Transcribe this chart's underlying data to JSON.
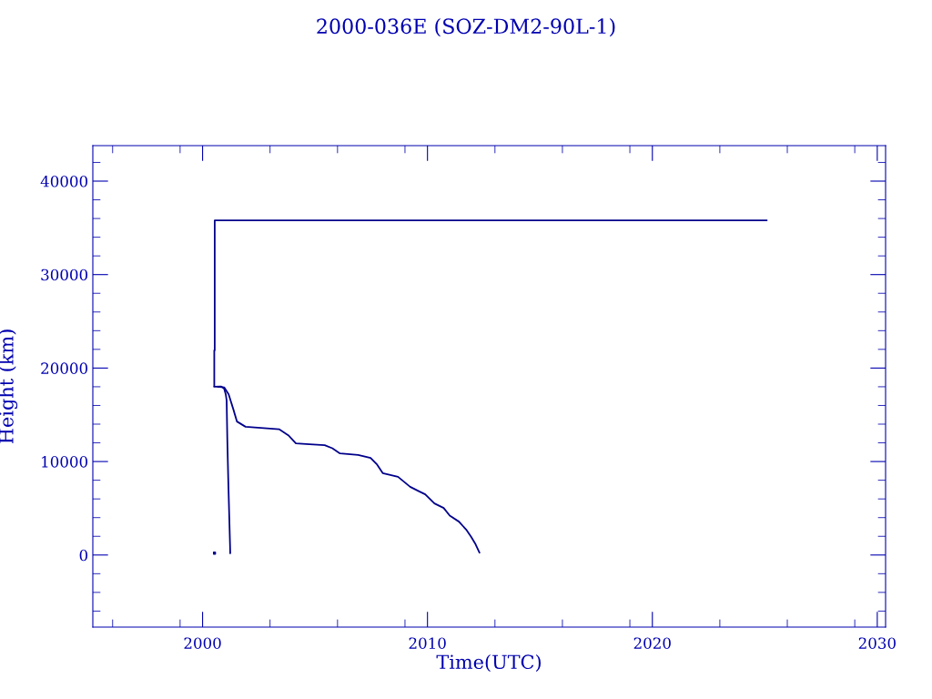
{
  "chart_data": {
    "type": "line",
    "title": "2000-036E (SOZ-DM2-90L-1)",
    "xlabel": "Time(UTC)",
    "ylabel": "Height (km)",
    "xlim": [
      1995.12,
      2030.37
    ],
    "ylim": [
      -7710,
      43800
    ],
    "xticks": [
      2000,
      2010,
      2020,
      2030
    ],
    "yticks": [
      0,
      10000,
      20000,
      30000,
      40000
    ],
    "grid": false,
    "legend": false,
    "line_style": "solid",
    "series": [
      {
        "color": "#00008b",
        "x": [
          2000.52,
          2000.52,
          2000.54,
          2000.54,
          2025.08
        ],
        "values": [
          18100,
          21900,
          21900,
          35800,
          35800
        ]
      },
      {
        "color": "#00008b",
        "x": [
          2000.52,
          2000.83,
          2000.96,
          2001.03,
          2001.07,
          2001.1,
          2001.14,
          2001.18,
          2001.22,
          2001.23
        ],
        "values": [
          18000,
          18030,
          17800,
          17200,
          16550,
          12360,
          8270,
          4670,
          1170,
          200
        ]
      },
      {
        "color": "#00008b",
        "x": [
          2000.69,
          2000.96,
          2001.16,
          2001.37,
          2001.53,
          2001.91,
          2002.86,
          2003.4,
          2003.81,
          2004.15,
          2004.76,
          2005.43,
          2005.77,
          2006.11,
          2006.92,
          2007.47,
          2007.74,
          2008.01,
          2008.69,
          2009.23,
          2009.63,
          2009.9,
          2010.31,
          2010.72,
          2010.99,
          2011.4,
          2011.74,
          2011.94,
          2012.14,
          2012.31
        ],
        "values": [
          18000,
          17940,
          17200,
          15570,
          14280,
          13720,
          13560,
          13460,
          12820,
          11940,
          11840,
          11750,
          11420,
          10870,
          10710,
          10380,
          9730,
          8760,
          8370,
          7300,
          6810,
          6490,
          5520,
          5030,
          4210,
          3570,
          2660,
          1950,
          1140,
          260
        ]
      },
      {
        "type": "scatter",
        "color": "#00008b",
        "marker": "square",
        "x": [
          2000.53
        ],
        "values": [
          200
        ]
      }
    ]
  }
}
